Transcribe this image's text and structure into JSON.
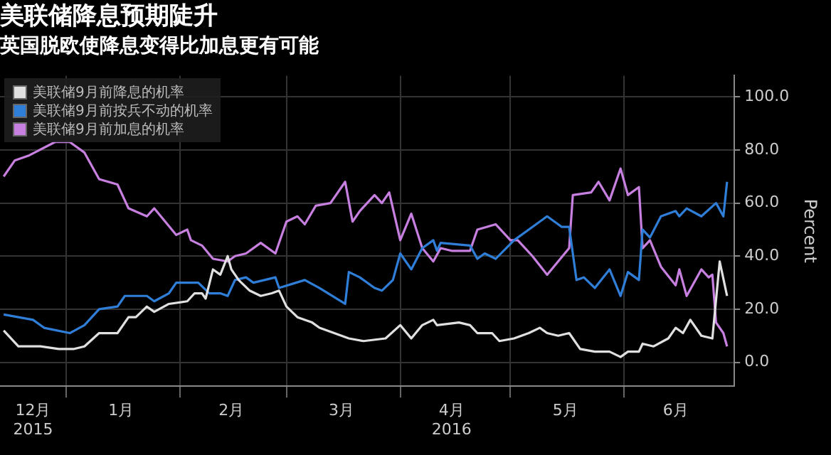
{
  "chart_data": {
    "type": "line",
    "title": "美联储降息预期陡升",
    "subtitle": "英国脱欧使降息变得比加息更有可能",
    "ylabel": "Percent",
    "xlim": [
      "2015-12-14",
      "2016-07-01"
    ],
    "xticks": [
      {
        "value": "2015-12-23",
        "label": "12月\n2015"
      },
      {
        "value": "2016-01-01",
        "label": null
      },
      {
        "value": "2016-01-16",
        "label": "1月"
      },
      {
        "value": "2016-02-01",
        "label": null
      },
      {
        "value": "2016-02-15",
        "label": "2月"
      },
      {
        "value": "2016-03-01",
        "label": null
      },
      {
        "value": "2016-03-16",
        "label": "3月"
      },
      {
        "value": "2016-04-01",
        "label": null
      },
      {
        "value": "2016-04-15",
        "label": "4月\n2016"
      },
      {
        "value": "2016-05-01",
        "label": null
      },
      {
        "value": "2016-05-16",
        "label": "5月"
      },
      {
        "value": "2016-06-01",
        "label": null
      },
      {
        "value": "2016-06-15",
        "label": "6月"
      }
    ],
    "ylim": [
      -9,
      108
    ],
    "yticks": [
      {
        "value": 0,
        "label": "0.0"
      },
      {
        "value": 20,
        "label": "20.0"
      },
      {
        "value": 40,
        "label": "40.0"
      },
      {
        "value": 60,
        "label": "60.0"
      },
      {
        "value": 80,
        "label": "80.0"
      },
      {
        "value": 100,
        "label": "100.0"
      }
    ],
    "grid": true,
    "legend": "top left",
    "marker": "none",
    "line_style": "solid",
    "series": [
      {
        "name": "美联储9月前降息的机率",
        "color": "#e0e0e0",
        "x": [
          "2015-12-15",
          "2015-12-19",
          "2015-12-25",
          "2015-12-30",
          "2016-01-03",
          "2016-01-06",
          "2016-01-10",
          "2016-01-15",
          "2016-01-18",
          "2016-01-20",
          "2016-01-23",
          "2016-01-25",
          "2016-01-29",
          "2016-02-03",
          "2016-02-05",
          "2016-02-07",
          "2016-02-08",
          "2016-02-10",
          "2016-02-12",
          "2016-02-14",
          "2016-02-15",
          "2016-02-17",
          "2016-02-20",
          "2016-02-23",
          "2016-02-26",
          "2016-02-28",
          "2016-03-01",
          "2016-03-04",
          "2016-03-08",
          "2016-03-10",
          "2016-03-14",
          "2016-03-18",
          "2016-03-22",
          "2016-03-28",
          "2016-04-01",
          "2016-04-04",
          "2016-04-07",
          "2016-04-10",
          "2016-04-11",
          "2016-04-17",
          "2016-04-20",
          "2016-04-22",
          "2016-04-26",
          "2016-04-28",
          "2016-05-02",
          "2016-05-06",
          "2016-05-09",
          "2016-05-11",
          "2016-05-14",
          "2016-05-17",
          "2016-05-20",
          "2016-05-24",
          "2016-05-28",
          "2016-05-31",
          "2016-06-02",
          "2016-06-05",
          "2016-06-06",
          "2016-06-09",
          "2016-06-13",
          "2016-06-15",
          "2016-06-17",
          "2016-06-19",
          "2016-06-22",
          "2016-06-25",
          "2016-06-27",
          "2016-06-29"
        ],
        "values": [
          12,
          6,
          6,
          5,
          5,
          6,
          11,
          11,
          17,
          17,
          21,
          19,
          22,
          23,
          26,
          26,
          24,
          35,
          33,
          40,
          35,
          31,
          27,
          25,
          26,
          27,
          21,
          17,
          15,
          13,
          11,
          9,
          8,
          9,
          14,
          9,
          14,
          16,
          14,
          15,
          14,
          11,
          11,
          8,
          9,
          11,
          13,
          11,
          10,
          11,
          5,
          4,
          4,
          2,
          4,
          4,
          7,
          6,
          9,
          13,
          11,
          16,
          10,
          9,
          38,
          25
        ]
      },
      {
        "name": "美联储9月前按兵不动的机率",
        "color": "#2f7ed8",
        "x": [
          "2015-12-15",
          "2015-12-23",
          "2015-12-26",
          "2016-01-02",
          "2016-01-06",
          "2016-01-10",
          "2016-01-15",
          "2016-01-17",
          "2016-01-23",
          "2016-01-25",
          "2016-01-29",
          "2016-01-31",
          "2016-02-06",
          "2016-02-09",
          "2016-02-12",
          "2016-02-14",
          "2016-02-16",
          "2016-02-19",
          "2016-02-21",
          "2016-02-27",
          "2016-02-28",
          "2016-03-06",
          "2016-03-10",
          "2016-03-17",
          "2016-03-18",
          "2016-03-21",
          "2016-03-25",
          "2016-03-27",
          "2016-03-30",
          "2016-04-01",
          "2016-04-04",
          "2016-04-07",
          "2016-04-10",
          "2016-04-11",
          "2016-04-12",
          "2016-04-20",
          "2016-04-22",
          "2016-04-24",
          "2016-04-27",
          "2016-05-02",
          "2016-05-07",
          "2016-05-11",
          "2016-05-15",
          "2016-05-17",
          "2016-05-19",
          "2016-05-21",
          "2016-05-24",
          "2016-05-28",
          "2016-05-31",
          "2016-06-02",
          "2016-06-05",
          "2016-06-06",
          "2016-06-08",
          "2016-06-11",
          "2016-06-15",
          "2016-06-16",
          "2016-06-18",
          "2016-06-22",
          "2016-06-26",
          "2016-06-28",
          "2016-06-29"
        ],
        "values": [
          18,
          16,
          13,
          11,
          14,
          20,
          21,
          25,
          25,
          23,
          26,
          30,
          30,
          26,
          26,
          25,
          31,
          32,
          30,
          32,
          28,
          31,
          28,
          22,
          34,
          32,
          28,
          27,
          31,
          41,
          35,
          43,
          46,
          42,
          45,
          44,
          39,
          41,
          39,
          46,
          51,
          55,
          51,
          51,
          31,
          32,
          28,
          35,
          25,
          34,
          31,
          50,
          47,
          55,
          57,
          55,
          58,
          55,
          60,
          55,
          68
        ]
      },
      {
        "name": "美联储9月前加息的机率",
        "color": "#c77fe0",
        "x": [
          "2015-12-15",
          "2015-12-18",
          "2015-12-22",
          "2015-12-29",
          "2016-01-02",
          "2016-01-06",
          "2016-01-10",
          "2016-01-15",
          "2016-01-18",
          "2016-01-23",
          "2016-01-25",
          "2016-01-28",
          "2016-01-31",
          "2016-02-03",
          "2016-02-04",
          "2016-02-07",
          "2016-02-10",
          "2016-02-14",
          "2016-02-16",
          "2016-02-19",
          "2016-02-23",
          "2016-02-27",
          "2016-03-01",
          "2016-03-04",
          "2016-03-06",
          "2016-03-09",
          "2016-03-13",
          "2016-03-17",
          "2016-03-19",
          "2016-03-21",
          "2016-03-25",
          "2016-03-27",
          "2016-03-29",
          "2016-04-01",
          "2016-04-04",
          "2016-04-07",
          "2016-04-10",
          "2016-04-12",
          "2016-04-15",
          "2016-04-20",
          "2016-04-22",
          "2016-04-27",
          "2016-05-01",
          "2016-05-03",
          "2016-05-07",
          "2016-05-11",
          "2016-05-14",
          "2016-05-17",
          "2016-05-18",
          "2016-05-23",
          "2016-05-25",
          "2016-05-28",
          "2016-05-31",
          "2016-06-02",
          "2016-06-05",
          "2016-06-06",
          "2016-06-08",
          "2016-06-11",
          "2016-06-15",
          "2016-06-16",
          "2016-06-18",
          "2016-06-22",
          "2016-06-24",
          "2016-06-25",
          "2016-06-26",
          "2016-06-28",
          "2016-06-29"
        ],
        "values": [
          70,
          76,
          78,
          83,
          83,
          79,
          69,
          67,
          58,
          55,
          58,
          53,
          48,
          50,
          46,
          44,
          39,
          38,
          40,
          41,
          45,
          41,
          53,
          55,
          52,
          59,
          60,
          68,
          53,
          57,
          63,
          60,
          64,
          46,
          56,
          43,
          38,
          43,
          42,
          42,
          50,
          52,
          46,
          46,
          40,
          33,
          38,
          43,
          63,
          64,
          68,
          61,
          73,
          63,
          66,
          43,
          46,
          36,
          29,
          35,
          25,
          35,
          32,
          33,
          15,
          11,
          6
        ]
      }
    ]
  }
}
